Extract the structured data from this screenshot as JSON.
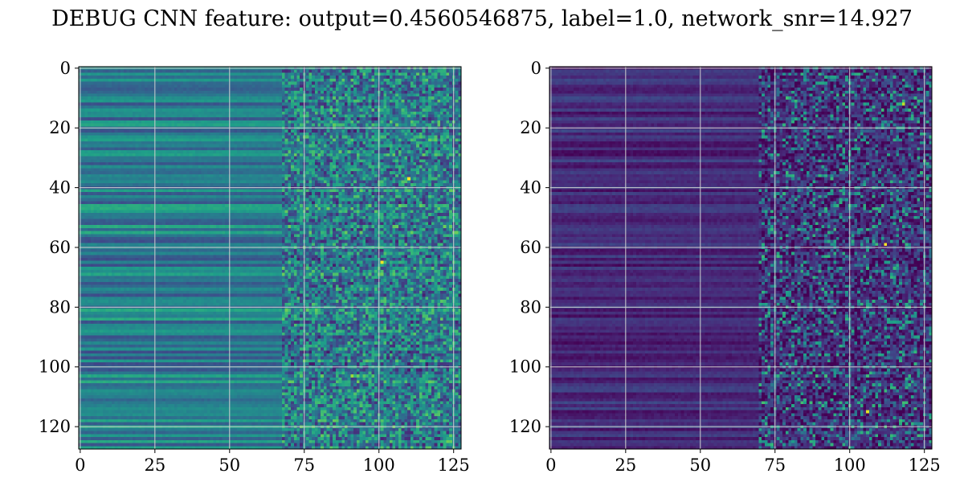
{
  "figure": {
    "title": "DEBUG CNN feature: output=0.4560546875, label=1.0, network_snr=14.927"
  },
  "chart_data": [
    {
      "type": "heatmap",
      "colormap": "viridis",
      "rows": 128,
      "cols": 128,
      "xlim": [
        0,
        127
      ],
      "ylim": [
        127,
        0
      ],
      "x_ticks": [
        "0",
        "25",
        "50",
        "75",
        "100",
        "125"
      ],
      "y_ticks": [
        "0",
        "20",
        "40",
        "60",
        "80",
        "100",
        "120"
      ],
      "x_tick_values": [
        0,
        25,
        50,
        75,
        100,
        125
      ],
      "y_tick_values": [
        0,
        20,
        40,
        60,
        80,
        100,
        120
      ],
      "grid": true,
      "value_range": [
        0,
        1
      ],
      "pattern": "horizontal row bands of mid values (teal/green) for columns 0-70, noisy high-variance speckle for columns 70-127",
      "base_level": 0.42,
      "band_amplitude": 0.2,
      "noise_start_col": 68,
      "noise_amplitude": 0.35,
      "hot_spots": [
        {
          "row": 37,
          "col": 110,
          "value": 1.0
        },
        {
          "row": 65,
          "col": 101,
          "value": 0.98
        },
        {
          "row": 103,
          "col": 91,
          "value": 0.85
        }
      ]
    },
    {
      "type": "heatmap",
      "colormap": "viridis",
      "rows": 128,
      "cols": 128,
      "xlim": [
        0,
        127
      ],
      "ylim": [
        127,
        0
      ],
      "x_ticks": [
        "0",
        "25",
        "50",
        "75",
        "100",
        "125"
      ],
      "y_ticks": [
        "0",
        "20",
        "40",
        "60",
        "80",
        "100",
        "120"
      ],
      "x_tick_values": [
        0,
        25,
        50,
        75,
        100,
        125
      ],
      "y_tick_values": [
        0,
        20,
        40,
        60,
        80,
        100,
        120
      ],
      "grid": true,
      "value_range": [
        0,
        1
      ],
      "pattern": "dark purple row bands for columns 0-70, sparse bright speckle (blue/teal/green) for columns 70-127",
      "base_level": 0.12,
      "band_amplitude": 0.1,
      "noise_start_col": 70,
      "noise_amplitude": 0.45,
      "hot_spots": [
        {
          "row": 59,
          "col": 112,
          "value": 1.0
        },
        {
          "row": 115,
          "col": 106,
          "value": 0.95
        },
        {
          "row": 12,
          "col": 118,
          "value": 0.9
        }
      ]
    }
  ]
}
